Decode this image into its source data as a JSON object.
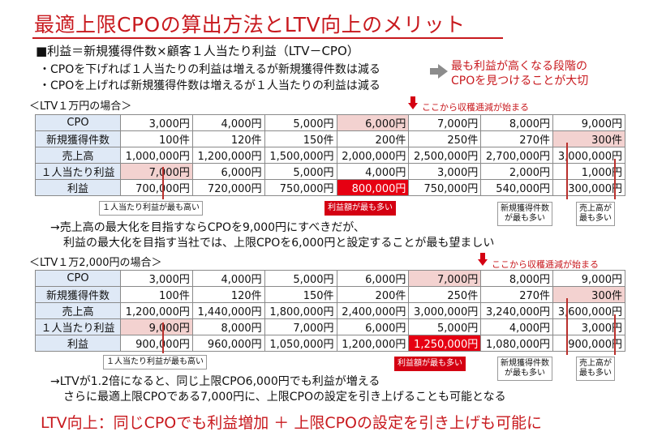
{
  "title": "最適上限CPOの算出方法とLTV向上のメリット",
  "heading": "■利益＝新規獲得件数×顧客１人当たり利益（LTV－CPO）",
  "bullets": [
    "・CPOを下げれば１人当たりの利益は増えるが新規獲得件数は減る",
    "・CPOを上げれば新規獲得件数は増えるが１人当たりの利益は減る"
  ],
  "callout": [
    "最も利益が高くなる段階の",
    "CPOを見つけることが大切"
  ],
  "case1": {
    "label": "＜LTV１万円の場合＞",
    "harvest_note": "ここから収穫逓減が始まる",
    "rows": [
      {
        "header": "CPO",
        "cells": [
          "3,000円",
          "4,000円",
          "5,000円",
          "6,000円",
          "7,000円",
          "8,000円",
          "9,000円"
        ]
      },
      {
        "header": "新規獲得件数",
        "cells": [
          "100件",
          "120件",
          "150件",
          "200件",
          "250件",
          "270件",
          "300件"
        ]
      },
      {
        "header": "売上高",
        "cells": [
          "1,000,000円",
          "1,200,000円",
          "1,500,000円",
          "2,000,000円",
          "2,500,000円",
          "2,700,000円",
          "3,000,000円"
        ]
      },
      {
        "header": "１人当たり利益",
        "cells": [
          "7,000円",
          "6,000円",
          "5,000円",
          "4,000円",
          "3,000円",
          "2,000円",
          "1,000円"
        ]
      },
      {
        "header": "利益",
        "cells": [
          "700,000円",
          "720,000円",
          "750,000円",
          "800,000円",
          "750,000円",
          "540,000円",
          "300,000円"
        ]
      }
    ],
    "notes": {
      "per_person_max": "１人当たり利益が最も高い",
      "profit_max": "利益額が最も多い",
      "acq_max": [
        "新規獲得件数",
        "が最も多い"
      ],
      "sales_max": [
        "売上高が",
        "最も多い"
      ]
    }
  },
  "conclusion1": [
    "→売上高の最大化を目指すならCPOを9,000円にすべきだが、",
    "利益の最大化を目指す当社では、上限CPOを6,000円と設定することが最も望ましい"
  ],
  "case2": {
    "label": "＜LTV１万2,000円の場合＞",
    "harvest_note": "ここから収穫逓減が始まる",
    "rows": [
      {
        "header": "CPO",
        "cells": [
          "3,000円",
          "4,000円",
          "5,000円",
          "6,000円",
          "7,000円",
          "8,000円",
          "9,000円"
        ]
      },
      {
        "header": "新規獲得件数",
        "cells": [
          "100件",
          "120件",
          "150件",
          "200件",
          "250件",
          "270件",
          "300件"
        ]
      },
      {
        "header": "売上高",
        "cells": [
          "1,200,000円",
          "1,440,000円",
          "1,800,000円",
          "2,400,000円",
          "3,000,000円",
          "3,240,000円",
          "3,600,000円"
        ]
      },
      {
        "header": "１人当たり利益",
        "cells": [
          "9,000円",
          "8,000円",
          "7,000円",
          "6,000円",
          "5,000円",
          "4,000円",
          "3,000円"
        ]
      },
      {
        "header": "利益",
        "cells": [
          "900,000円",
          "960,000円",
          "1,050,000円",
          "1,200,000円",
          "1,250,000円",
          "1,080,000円",
          "900,000円"
        ]
      }
    ],
    "notes": {
      "per_person_max": "１人当たり利益が最も高い",
      "profit_max": "利益額が最も多い",
      "acq_max": [
        "新規獲得件数",
        "が最も多い"
      ],
      "sales_max": [
        "売上高が",
        "最も多い"
      ]
    }
  },
  "conclusion2": [
    "→LTVが1.2倍になると、同じ上限CPO6,000円でも利益が増える",
    "さらに最適上限CPOである7,000円に、上限CPOの設定を引き上げることも可能となる"
  ],
  "bottom_line": "LTV向上：同じCPOでも利益増加 ＋ 上限CPOの設定を引き上げも可能に",
  "colors": {
    "accent_red": "#c8191e",
    "highlight_red": "#e60012",
    "highlight_pink": "#f3d2d0",
    "header_blue": "#dfe9f6"
  }
}
